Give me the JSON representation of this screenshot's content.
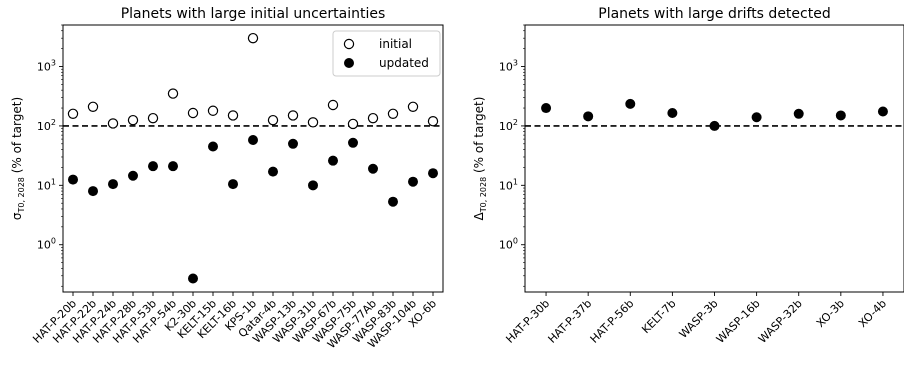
{
  "chart_data": [
    {
      "type": "scatter",
      "title": "Planets with large initial uncertainties",
      "ylabel_main": "σ",
      "ylabel_sub": "T0, 2028",
      "ylabel_rest": " (% of target)",
      "yscale": "log",
      "ylim": [
        0.16,
        5000
      ],
      "yticks": [
        {
          "value": 1,
          "base": "10",
          "exp": "0"
        },
        {
          "value": 10,
          "base": "10",
          "exp": "1"
        },
        {
          "value": 100,
          "base": "10",
          "exp": "2"
        },
        {
          "value": 1000,
          "base": "10",
          "exp": "3"
        }
      ],
      "reference_line": 100,
      "legend_position": "top-right",
      "categories": [
        "HAT-P-20b",
        "HAT-P-22b",
        "HAT-P-24b",
        "HAT-P-28b",
        "HAT-P-53b",
        "HAT-P-54b",
        "K2-30b",
        "KELT-15b",
        "KELT-16b",
        "KPS-1b",
        "Qatar-4b",
        "WASP-13b",
        "WASP-31b",
        "WASP-67b",
        "WASP-75b",
        "WASP-77Ab",
        "WASP-83b",
        "WASP-104b",
        "XO-6b"
      ],
      "series": [
        {
          "name": "initial",
          "marker": "open",
          "values": [
            160,
            210,
            110,
            125,
            135,
            350,
            165,
            180,
            150,
            3000,
            125,
            150,
            115,
            225,
            108,
            135,
            160,
            210,
            120
          ]
        },
        {
          "name": "updated",
          "marker": "filled",
          "values": [
            12.5,
            8,
            10.5,
            14.5,
            21,
            21,
            0.27,
            45,
            10.5,
            58,
            17,
            50,
            10,
            26,
            52,
            19,
            5.3,
            11.5,
            16
          ]
        }
      ]
    },
    {
      "type": "scatter",
      "title": "Planets with large drifts detected",
      "ylabel_main": "Δ",
      "ylabel_sub": "T0, 2028",
      "ylabel_rest": " (% of target)",
      "yscale": "log",
      "ylim": [
        0.16,
        5000
      ],
      "yticks": [
        {
          "value": 1,
          "base": "10",
          "exp": "0"
        },
        {
          "value": 10,
          "base": "10",
          "exp": "1"
        },
        {
          "value": 100,
          "base": "10",
          "exp": "2"
        },
        {
          "value": 1000,
          "base": "10",
          "exp": "3"
        }
      ],
      "reference_line": 100,
      "categories": [
        "HAT-P-30b",
        "HAT-P-37b",
        "HAT-P-56b",
        "KELT-7b",
        "WASP-3b",
        "WASP-16b",
        "WASP-32b",
        "XO-3b",
        "XO-4b"
      ],
      "series": [
        {
          "marker": "filled",
          "values": [
            200,
            145,
            235,
            165,
            100,
            140,
            160,
            150,
            175
          ]
        }
      ]
    }
  ]
}
